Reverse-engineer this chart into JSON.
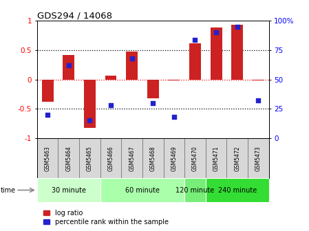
{
  "title": "GDS294 / 14068",
  "samples": [
    "GSM5463",
    "GSM5464",
    "GSM5465",
    "GSM5466",
    "GSM5467",
    "GSM5468",
    "GSM5469",
    "GSM5470",
    "GSM5471",
    "GSM5472",
    "GSM5473"
  ],
  "log_ratio": [
    -0.38,
    0.42,
    -0.82,
    0.07,
    0.47,
    -0.32,
    -0.02,
    0.62,
    0.88,
    0.93,
    -0.02
  ],
  "percentile": [
    20,
    62,
    15,
    28,
    68,
    30,
    18,
    84,
    90,
    95,
    32
  ],
  "group_info": [
    {
      "label": "30 minute",
      "start": 0,
      "end": 2,
      "color": "#ccffcc"
    },
    {
      "label": "60 minute",
      "start": 3,
      "end": 6,
      "color": "#aaffaa"
    },
    {
      "label": "120 minute",
      "start": 7,
      "end": 7,
      "color": "#77ee77"
    },
    {
      "label": "240 minute",
      "start": 8,
      "end": 10,
      "color": "#33dd33"
    }
  ],
  "bar_color": "#cc2222",
  "dot_color": "#2222cc",
  "ylim_left": [
    -1,
    1
  ],
  "ylim_right": [
    0,
    100
  ],
  "yticks_left": [
    -1,
    -0.5,
    0,
    0.5,
    1
  ],
  "yticks_right": [
    0,
    25,
    50,
    75,
    100
  ],
  "yticklabels_right": [
    "0",
    "25",
    "50",
    "75",
    "100%"
  ],
  "hlines_black": [
    -0.5,
    0.5
  ],
  "hline_red": 0,
  "legend_labels": [
    "log ratio",
    "percentile rank within the sample"
  ]
}
